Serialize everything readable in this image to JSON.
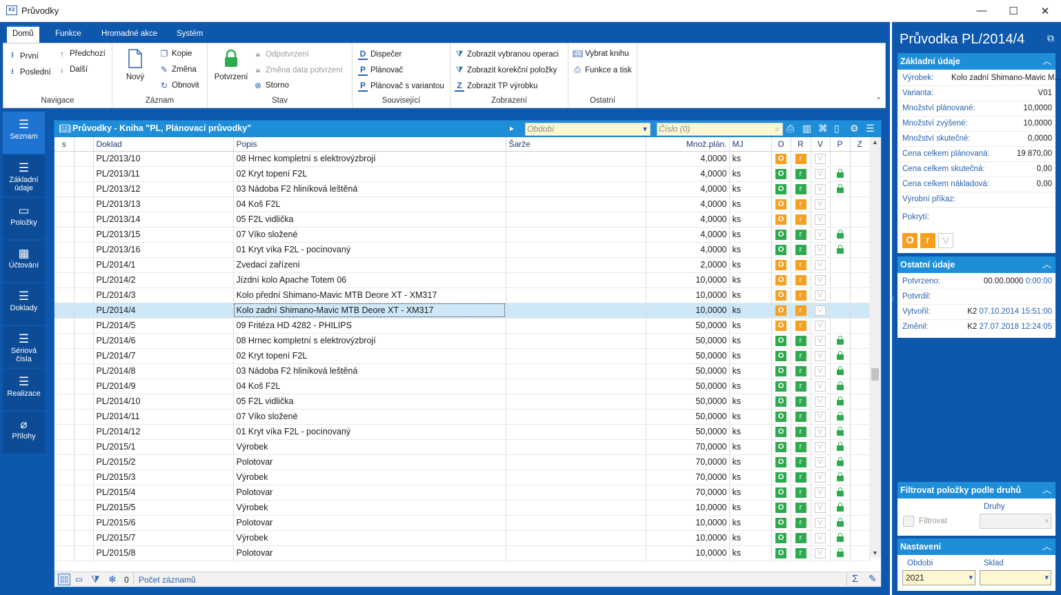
{
  "window": {
    "title": "Průvodky",
    "app_badge": "K2",
    "minimize": "—",
    "maximize": "☐",
    "close": "✕"
  },
  "ribbon": {
    "tabs": [
      "Domů",
      "Funkce",
      "Hromadné akce",
      "Systém"
    ],
    "navigace": {
      "label": "Navigace",
      "prvni": "První",
      "posledni": "Poslední",
      "predchozi": "Předchozí",
      "dalsi": "Další"
    },
    "zaznam": {
      "label": "Záznam",
      "novy": "Nový",
      "kopie": "Kopie",
      "zmena": "Změna",
      "obnovit": "Obnovit"
    },
    "stav": {
      "label": "Stav",
      "potvrzeni": "Potvrzení",
      "odpotvrzeni": "Odpotvrzení",
      "zmena_data": "Změna data potvrzení",
      "storno": "Storno"
    },
    "souvisejici": {
      "label": "Související",
      "dispecer": "Dispečer",
      "planovac": "Plánovač",
      "planovac_var": "Plánovač s variantou"
    },
    "zobrazeni": {
      "label": "Zobrazení",
      "vybranou": "Zobrazit vybranou operaci",
      "korekcni": "Zobrazit korekční položky",
      "tp": "Zobrazit TP výrobku"
    },
    "ostatni": {
      "label": "Ostatní",
      "vybrat": "Vybrat knihu",
      "funkce": "Funkce a tisk"
    }
  },
  "leftnav": [
    {
      "label": "Seznam"
    },
    {
      "label": "Základní údaje"
    },
    {
      "label": "Položky"
    },
    {
      "label": "Účtování"
    },
    {
      "label": "Doklady"
    },
    {
      "label": "Sériová čísla"
    },
    {
      "label": "Realizace"
    },
    {
      "label": "Přílohy"
    }
  ],
  "grid": {
    "title": "Průvodky - Kniha \"PL, Plánovací průvodky\"",
    "obdobi_placeholder": "Období",
    "cislo_placeholder": "Číslo (0)",
    "columns": [
      "s",
      "",
      "Doklad",
      "Popis",
      "Šarže",
      "Množ.plán.",
      "MJ",
      "O",
      "R",
      "V",
      "P",
      "Z"
    ],
    "rows": [
      {
        "doklad": "PL/2013/10",
        "popis": "08 Hrnec kompletní s elektrovýzbrojí",
        "mnoz": "4,0000",
        "mj": "ks",
        "o": "orange",
        "r": "orange",
        "lock": false
      },
      {
        "doklad": "PL/2013/11",
        "popis": "02 Kryt topení F2L",
        "mnoz": "4,0000",
        "mj": "ks",
        "o": "green",
        "r": "green",
        "lock": true
      },
      {
        "doklad": "PL/2013/12",
        "popis": "03 Nádoba F2 hliníková leštěná",
        "mnoz": "4,0000",
        "mj": "ks",
        "o": "green",
        "r": "green",
        "lock": true
      },
      {
        "doklad": "PL/2013/13",
        "popis": "04 Koš F2L",
        "mnoz": "4,0000",
        "mj": "ks",
        "o": "orange",
        "r": "orange",
        "lock": false
      },
      {
        "doklad": "PL/2013/14",
        "popis": "05 F2L vidlička",
        "mnoz": "4,0000",
        "mj": "ks",
        "o": "orange",
        "r": "orange",
        "lock": false
      },
      {
        "doklad": "PL/2013/15",
        "popis": "07 Víko složené",
        "mnoz": "4,0000",
        "mj": "ks",
        "o": "green",
        "r": "green",
        "lock": true
      },
      {
        "doklad": "PL/2013/16",
        "popis": "01 Kryt víka F2L - pocínovaný",
        "mnoz": "4,0000",
        "mj": "ks",
        "o": "green",
        "r": "green",
        "lock": true
      },
      {
        "doklad": "PL/2014/1",
        "popis": "Zvedací zařízení",
        "mnoz": "2,0000",
        "mj": "ks",
        "o": "orange",
        "r": "orange",
        "lock": false
      },
      {
        "doklad": "PL/2014/2",
        "popis": "Jízdní kolo Apache Totem 06",
        "mnoz": "10,0000",
        "mj": "ks",
        "o": "orange",
        "r": "orange",
        "lock": false
      },
      {
        "doklad": "PL/2014/3",
        "popis": "Kolo přední Shimano-Mavic MTB Deore XT - XM317",
        "mnoz": "10,0000",
        "mj": "ks",
        "o": "orange",
        "r": "orange",
        "lock": false
      },
      {
        "doklad": "PL/2014/4",
        "popis": "Kolo zadní Shimano-Mavic MTB Deore XT - XM317",
        "mnoz": "10,0000",
        "mj": "ks",
        "o": "orange",
        "r": "orange",
        "lock": false,
        "selected": true
      },
      {
        "doklad": "PL/2014/5",
        "popis": "09 Fritéza HD 4282 - PHILIPS",
        "mnoz": "50,0000",
        "mj": "ks",
        "o": "orange",
        "r": "orange",
        "lock": false
      },
      {
        "doklad": "PL/2014/6",
        "popis": "08 Hrnec kompletní s elektrovýzbrojí",
        "mnoz": "50,0000",
        "mj": "ks",
        "o": "green",
        "r": "green",
        "lock": true
      },
      {
        "doklad": "PL/2014/7",
        "popis": "02 Kryt topení F2L",
        "mnoz": "50,0000",
        "mj": "ks",
        "o": "green",
        "r": "green",
        "lock": true
      },
      {
        "doklad": "PL/2014/8",
        "popis": "03 Nádoba F2 hliníková leštěná",
        "mnoz": "50,0000",
        "mj": "ks",
        "o": "green",
        "r": "green",
        "lock": true
      },
      {
        "doklad": "PL/2014/9",
        "popis": "04 Koš F2L",
        "mnoz": "50,0000",
        "mj": "ks",
        "o": "green",
        "r": "green",
        "lock": true
      },
      {
        "doklad": "PL/2014/10",
        "popis": "05 F2L vidlička",
        "mnoz": "50,0000",
        "mj": "ks",
        "o": "green",
        "r": "green",
        "lock": true
      },
      {
        "doklad": "PL/2014/11",
        "popis": "07 Víko složené",
        "mnoz": "50,0000",
        "mj": "ks",
        "o": "green",
        "r": "green",
        "lock": true
      },
      {
        "doklad": "PL/2014/12",
        "popis": "01 Kryt víka F2L - pocínovaný",
        "mnoz": "50,0000",
        "mj": "ks",
        "o": "green",
        "r": "green",
        "lock": true
      },
      {
        "doklad": "PL/2015/1",
        "popis": "Výrobek",
        "mnoz": "70,0000",
        "mj": "ks",
        "o": "green",
        "r": "green",
        "lock": true
      },
      {
        "doklad": "PL/2015/2",
        "popis": "Polotovar",
        "mnoz": "70,0000",
        "mj": "ks",
        "o": "green",
        "r": "green",
        "lock": true
      },
      {
        "doklad": "PL/2015/3",
        "popis": "Výrobek",
        "mnoz": "70,0000",
        "mj": "ks",
        "o": "green",
        "r": "green",
        "lock": true
      },
      {
        "doklad": "PL/2015/4",
        "popis": "Polotovar",
        "mnoz": "70,0000",
        "mj": "ks",
        "o": "green",
        "r": "green",
        "lock": true
      },
      {
        "doklad": "PL/2015/5",
        "popis": "Výrobek",
        "mnoz": "10,0000",
        "mj": "ks",
        "o": "green",
        "r": "green",
        "lock": true
      },
      {
        "doklad": "PL/2015/6",
        "popis": "Polotovar",
        "mnoz": "10,0000",
        "mj": "ks",
        "o": "green",
        "r": "green",
        "lock": true
      },
      {
        "doklad": "PL/2015/7",
        "popis": "Výrobek",
        "mnoz": "10,0000",
        "mj": "ks",
        "o": "green",
        "r": "green",
        "lock": true
      },
      {
        "doklad": "PL/2015/8",
        "popis": "Polotovar",
        "mnoz": "10,0000",
        "mj": "ks",
        "o": "green",
        "r": "green",
        "lock": true
      }
    ],
    "footer": {
      "zero": "0",
      "pocet": "Počet záznamů"
    }
  },
  "detail": {
    "title": "Průvodka PL/2014/4",
    "zakladni": {
      "header": "Základní údaje",
      "vyrobek_label": "Výrobek:",
      "vyrobek": "Kolo zadní Shimano-Mavic M...",
      "varianta_label": "Varianta:",
      "varianta": "V01",
      "planovane_label": "Množství plánované:",
      "planovane": "10,0000",
      "zvysene_label": "Množství zvýšené:",
      "zvysene": "10,0000",
      "skutecne_label": "Množství skutečné:",
      "skutecne": "0,0000",
      "cena_plan_label": "Cena celkem plánovaná:",
      "cena_plan": "19 870,00",
      "cena_skut_label": "Cena celkem skutečná:",
      "cena_skut": "0,00",
      "cena_nakl_label": "Cena celkem nákladová:",
      "cena_nakl": "0,00",
      "prikaz_label": "Výrobní příkaz:",
      "pokryti_label": "Pokrytí:",
      "badges": [
        "O",
        "r",
        "V"
      ]
    },
    "ostatni": {
      "header": "Ostatní údaje",
      "potvrzeno_label": "Potvrzeno:",
      "potvrzeno_date": "00.00.0000",
      "potvrzeno_time": "0:00:00",
      "potvrdil_label": "Potvrdil:",
      "vytvoril_label": "Vytvořil:",
      "vytvoril_user": "K2",
      "vytvoril_date": "07.10.2014 15:51:00",
      "zmenil_label": "Změnil:",
      "zmenil_user": "K2",
      "zmenil_date": "27.07.2018 12:24:05"
    },
    "filtr": {
      "header": "Filtrovat položky podle druhů",
      "druhy": "Druhy",
      "filtrovat": "Filtrovat"
    },
    "nastaveni": {
      "header": "Nastavení",
      "obdobi_label": "Období",
      "obdobi": "2021",
      "sklad_label": "Sklad"
    }
  }
}
